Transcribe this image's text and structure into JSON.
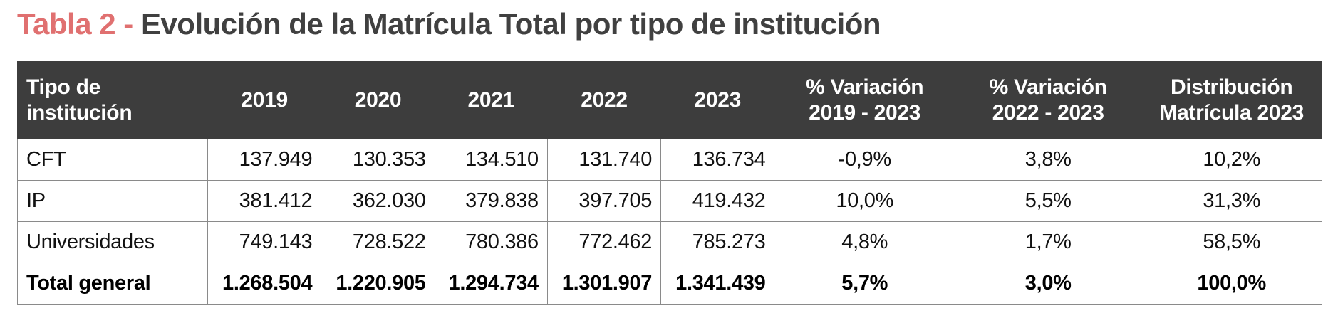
{
  "title": {
    "prefix": "Tabla 2 - ",
    "text": "Evolución de la Matrícula Total por tipo de institución"
  },
  "table": {
    "headers": [
      {
        "line1": "Tipo de",
        "line2": "institución"
      },
      {
        "line1": "2019",
        "line2": ""
      },
      {
        "line1": "2020",
        "line2": ""
      },
      {
        "line1": "2021",
        "line2": ""
      },
      {
        "line1": "2022",
        "line2": ""
      },
      {
        "line1": "2023",
        "line2": ""
      },
      {
        "line1": "% Variación",
        "line2": "2019 - 2023"
      },
      {
        "line1": "% Variación",
        "line2": "2022 - 2023"
      },
      {
        "line1": "Distribución",
        "line2": "Matrícula 2023"
      }
    ],
    "rows": [
      {
        "label": "CFT",
        "v2019": "137.949",
        "v2020": "130.353",
        "v2021": "134.510",
        "v2022": "131.740",
        "v2023": "136.734",
        "var1923": "-0,9%",
        "var2223": "3,8%",
        "dist": "10,2%"
      },
      {
        "label": "IP",
        "v2019": "381.412",
        "v2020": "362.030",
        "v2021": "379.838",
        "v2022": "397.705",
        "v2023": "419.432",
        "var1923": "10,0%",
        "var2223": "5,5%",
        "dist": "31,3%"
      },
      {
        "label": "Universidades",
        "v2019": "749.143",
        "v2020": "728.522",
        "v2021": "780.386",
        "v2022": "772.462",
        "v2023": "785.273",
        "var1923": "4,8%",
        "var2223": "1,7%",
        "dist": "58,5%"
      }
    ],
    "total": {
      "label": "Total general",
      "v2019": "1.268.504",
      "v2020": "1.220.905",
      "v2021": "1.294.734",
      "v2022": "1.301.907",
      "v2023": "1.341.439",
      "var1923": "5,7%",
      "var2223": "3,0%",
      "dist": "100,0%"
    }
  },
  "colors": {
    "title_prefix": "#E07070",
    "title_text": "#404040",
    "header_bg": "#3d3d3d",
    "header_text": "#ffffff",
    "grid": "#8a8a8a"
  }
}
